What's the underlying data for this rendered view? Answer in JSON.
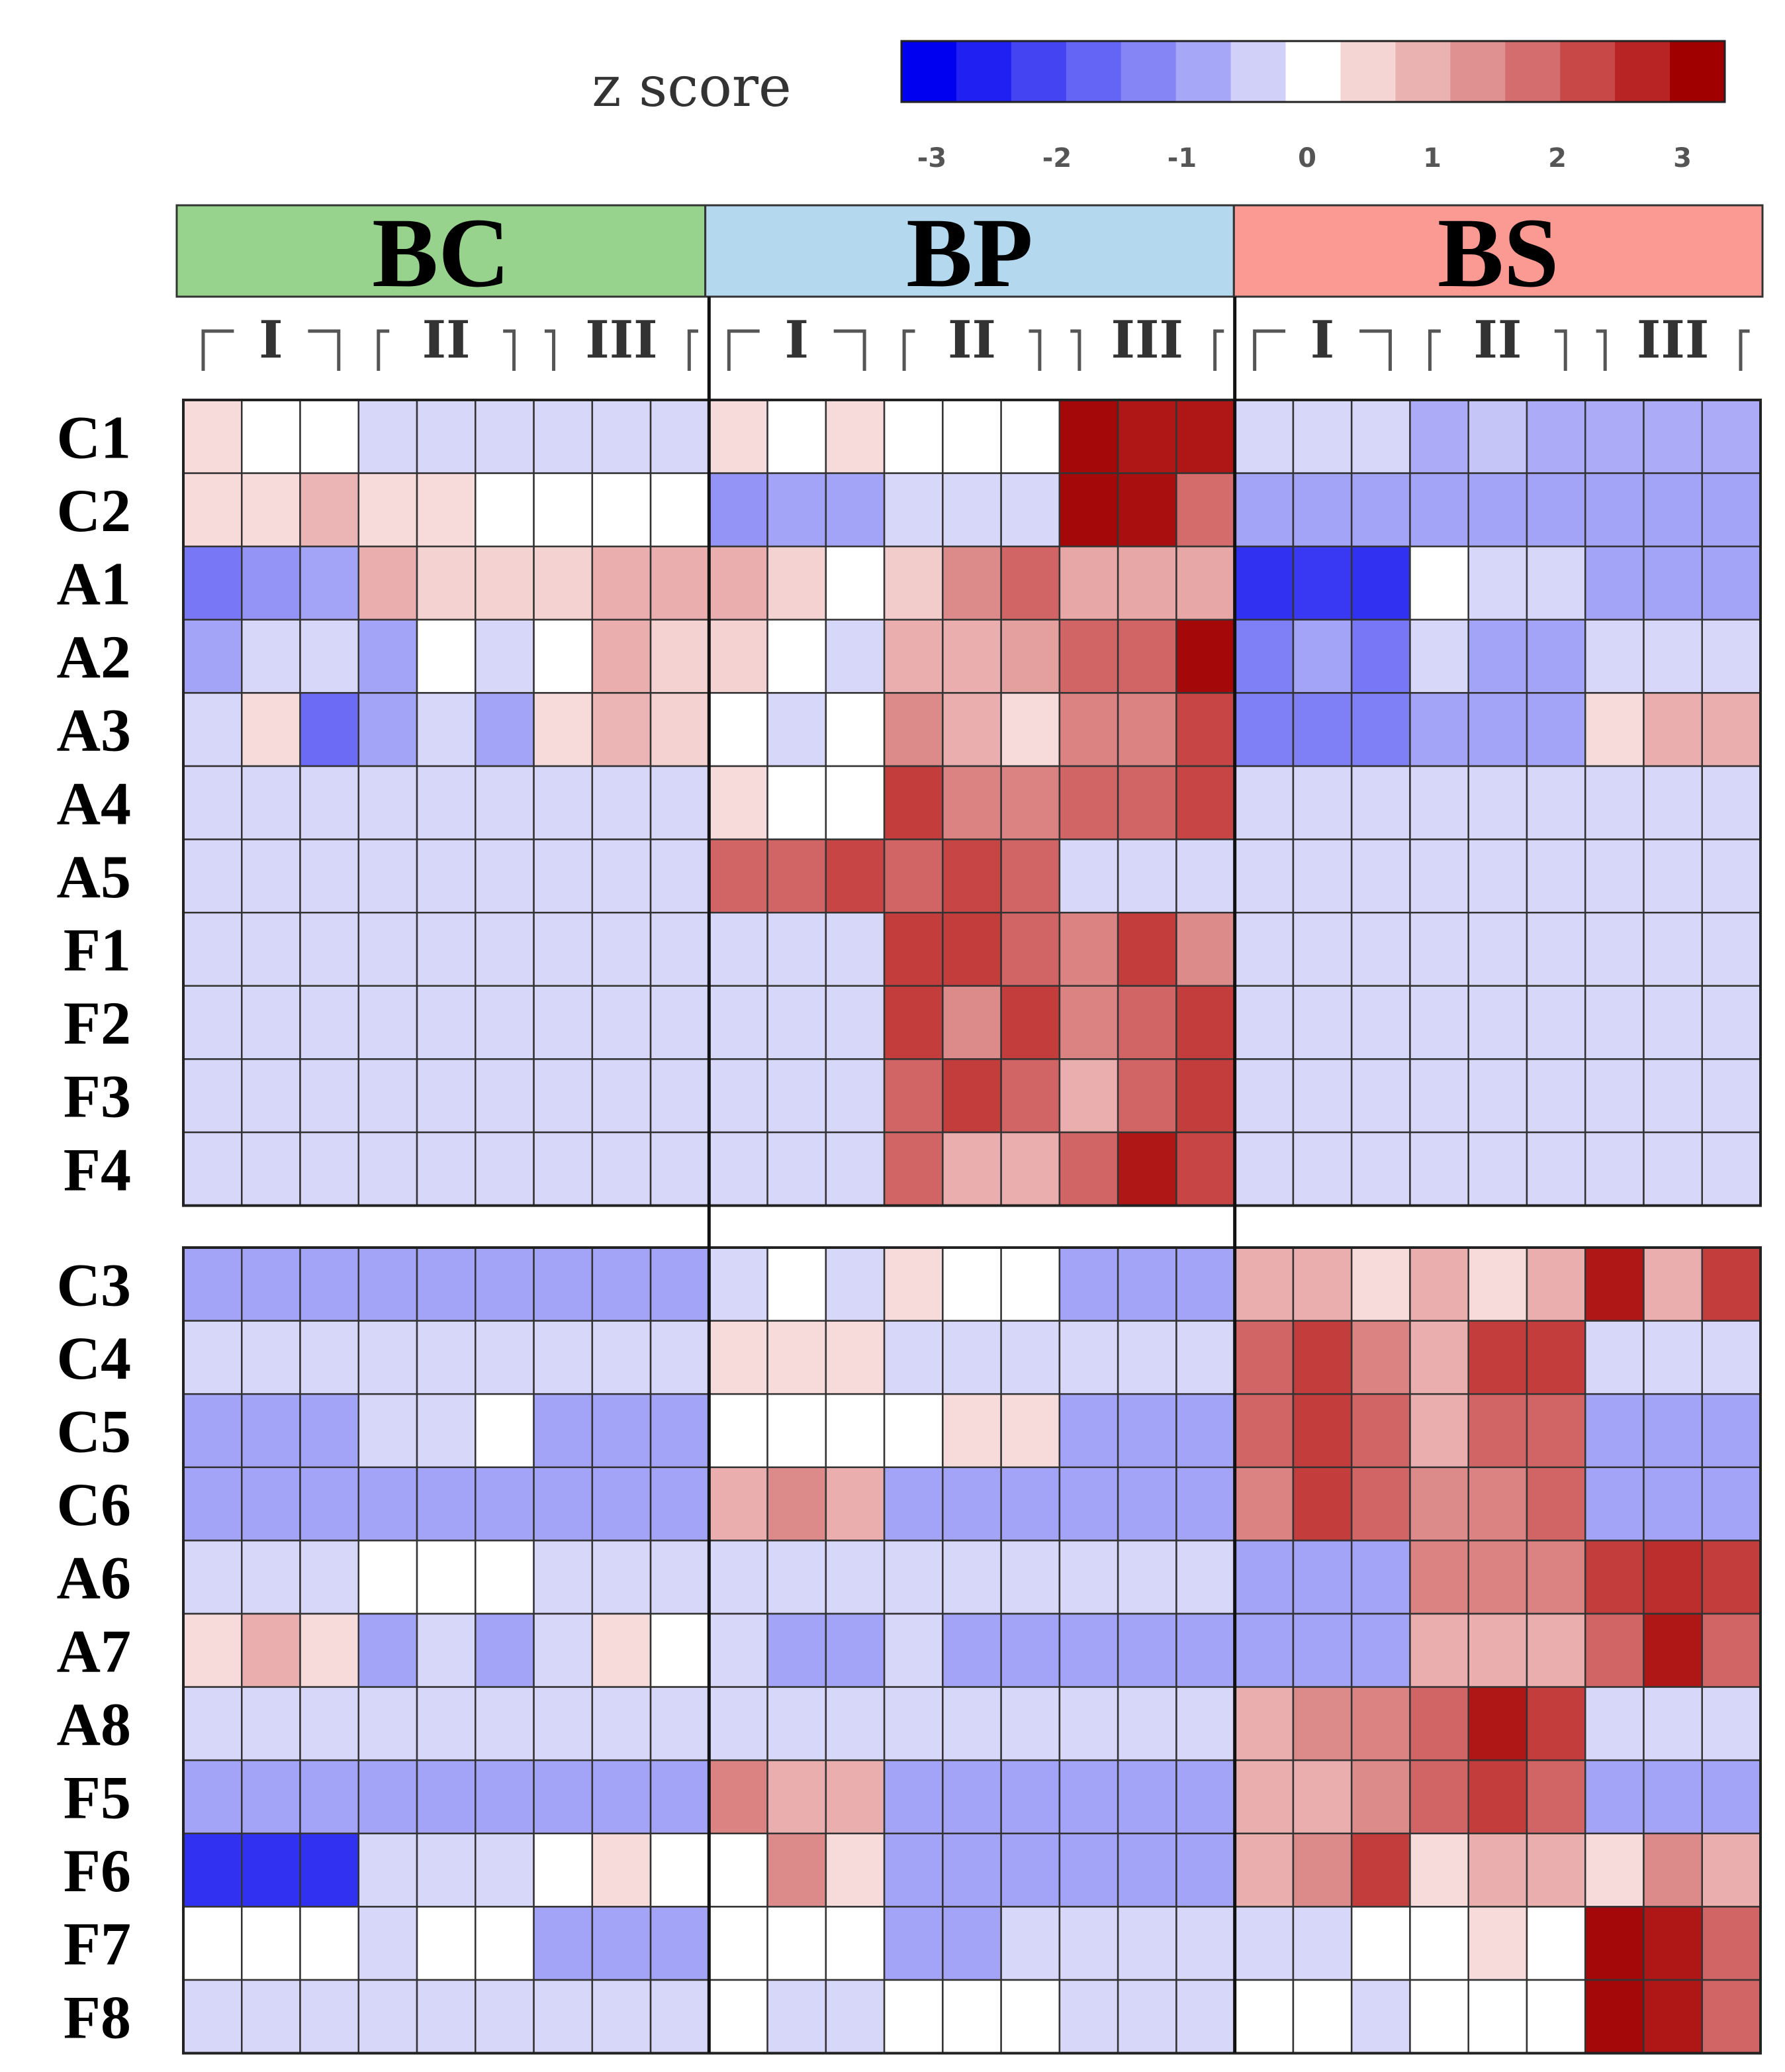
{
  "chart_data": {
    "type": "heatmap",
    "colorbar": {
      "title": "z score",
      "ticks": [
        "-3",
        "-2",
        "-1",
        "0",
        "1",
        "2",
        "3"
      ],
      "range": [
        -3.3,
        3.3
      ],
      "colors": [
        "#0000f0",
        "#2020f2",
        "#4444f3",
        "#6565f5",
        "#8585f6",
        "#a7a7f7",
        "#d0d0f9",
        "#ffffff",
        "#f5d4d4",
        "#ebb2b2",
        "#df9090",
        "#d46d6d",
        "#c84848",
        "#b82424",
        "#a00000"
      ]
    },
    "groups": [
      {
        "label": "BC",
        "color": "#98d38e"
      },
      {
        "label": "BP",
        "color": "#b4d9ef"
      },
      {
        "label": "BS",
        "color": "#fa9a92"
      }
    ],
    "replicates": [
      "I",
      "II",
      "III"
    ],
    "columns_per_group": 9,
    "panels": [
      {
        "rows": [
          "C1",
          "C2",
          "A1",
          "A2",
          "A3",
          "A4",
          "A5",
          "F1",
          "F2",
          "F3",
          "F4"
        ],
        "values": [
          [
            0.4,
            0,
            0,
            -0.4,
            -0.4,
            -0.4,
            -0.4,
            -0.4,
            -0.4,
            0.4,
            0,
            0.4,
            0,
            0,
            0,
            3.2,
            3.0,
            3.0,
            -0.4,
            -0.4,
            -0.4,
            -0.9,
            -0.6,
            -0.9,
            -0.9,
            -0.9,
            -0.9
          ],
          [
            0.4,
            0.4,
            0.9,
            0.4,
            0.4,
            0,
            0,
            0,
            0,
            -1.2,
            -1.0,
            -1.0,
            -0.4,
            -0.4,
            -0.4,
            3.2,
            3.1,
            1.9,
            -1.0,
            -1.0,
            -1.0,
            -1.0,
            -1.0,
            -1.0,
            -1.0,
            -1.0,
            -1.0
          ],
          [
            -1.6,
            -1.2,
            -1.0,
            1.0,
            0.5,
            0.5,
            0.5,
            1.0,
            1.0,
            1.0,
            0.5,
            0,
            0.6,
            1.5,
            2.0,
            1.1,
            1.1,
            1.1,
            -2.6,
            -2.5,
            -2.6,
            0,
            -0.4,
            -0.4,
            -1.0,
            -1.0,
            -1.0
          ],
          [
            -1.0,
            -0.4,
            -0.4,
            -1.0,
            0,
            -0.4,
            0,
            1.0,
            0.5,
            0.5,
            0,
            -0.4,
            1.0,
            1.0,
            1.2,
            2.0,
            2.0,
            3.2,
            -1.5,
            -1.0,
            -1.6,
            -0.4,
            -1.0,
            -1.0,
            -0.4,
            -0.4,
            -0.4
          ],
          [
            -0.4,
            0.4,
            -1.8,
            -1.0,
            -0.4,
            -1.0,
            0.4,
            0.9,
            0.5,
            0,
            -0.4,
            0,
            1.5,
            1.0,
            0.4,
            1.6,
            1.6,
            2.4,
            -1.5,
            -1.5,
            -1.5,
            -1.0,
            -1.0,
            -1.0,
            0.4,
            1.0,
            1.0
          ],
          [
            -0.4,
            -0.4,
            -0.4,
            -0.4,
            -0.4,
            -0.4,
            -0.4,
            -0.4,
            -0.4,
            0.4,
            0,
            0,
            2.5,
            1.6,
            1.6,
            2.0,
            2.0,
            2.4,
            -0.4,
            -0.4,
            -0.4,
            -0.4,
            -0.4,
            -0.4,
            -0.4,
            -0.4,
            -0.4
          ],
          [
            -0.4,
            -0.4,
            -0.4,
            -0.4,
            -0.4,
            -0.4,
            -0.4,
            -0.4,
            -0.4,
            2.0,
            2.0,
            2.4,
            2.0,
            2.4,
            2.0,
            -0.4,
            -0.4,
            -0.4,
            -0.4,
            -0.4,
            -0.4,
            -0.4,
            -0.4,
            -0.4,
            -0.4,
            -0.4,
            -0.4
          ],
          [
            -0.4,
            -0.4,
            -0.4,
            -0.4,
            -0.4,
            -0.4,
            -0.4,
            -0.4,
            -0.4,
            -0.4,
            -0.4,
            -0.4,
            2.5,
            2.5,
            2.0,
            1.6,
            2.5,
            1.5,
            -0.4,
            -0.4,
            -0.4,
            -0.4,
            -0.4,
            -0.4,
            -0.4,
            -0.4,
            -0.4
          ],
          [
            -0.4,
            -0.4,
            -0.4,
            -0.4,
            -0.4,
            -0.4,
            -0.4,
            -0.4,
            -0.4,
            -0.4,
            -0.4,
            -0.4,
            2.5,
            1.5,
            2.5,
            1.6,
            2.0,
            2.5,
            -0.4,
            -0.4,
            -0.4,
            -0.4,
            -0.4,
            -0.4,
            -0.4,
            -0.4,
            -0.4
          ],
          [
            -0.4,
            -0.4,
            -0.4,
            -0.4,
            -0.4,
            -0.4,
            -0.4,
            -0.4,
            -0.4,
            -0.4,
            -0.4,
            -0.4,
            2.0,
            2.5,
            2.0,
            1.0,
            2.0,
            2.5,
            -0.4,
            -0.4,
            -0.4,
            -0.4,
            -0.4,
            -0.4,
            -0.4,
            -0.4,
            -0.4
          ],
          [
            -0.4,
            -0.4,
            -0.4,
            -0.4,
            -0.4,
            -0.4,
            -0.4,
            -0.4,
            -0.4,
            -0.4,
            -0.4,
            -0.4,
            2.0,
            1.0,
            1.0,
            2.0,
            3.0,
            2.4,
            -0.4,
            -0.4,
            -0.4,
            -0.4,
            -0.4,
            -0.4,
            -0.4,
            -0.4,
            -0.4
          ]
        ]
      },
      {
        "rows": [
          "C3",
          "C4",
          "C5",
          "C6",
          "A6",
          "A7",
          "A8",
          "F5",
          "F6",
          "F7",
          "F8"
        ],
        "values": [
          [
            -1.0,
            -1.0,
            -1.0,
            -1.0,
            -1.0,
            -1.0,
            -1.0,
            -1.0,
            -1.0,
            -0.4,
            0,
            -0.4,
            0.4,
            0,
            0,
            -1.0,
            -1.0,
            -1.0,
            1.0,
            1.0,
            0.4,
            1.0,
            0.4,
            1.0,
            3.0,
            1.0,
            2.5
          ],
          [
            -0.4,
            -0.4,
            -0.4,
            -0.4,
            -0.4,
            -0.4,
            -0.4,
            -0.4,
            -0.4,
            0.4,
            0.4,
            0.4,
            -0.4,
            -0.4,
            -0.4,
            -0.4,
            -0.4,
            -0.4,
            2.0,
            2.5,
            1.6,
            1.0,
            2.5,
            2.5,
            -0.4,
            -0.4,
            -0.4
          ],
          [
            -1.0,
            -1.0,
            -1.0,
            -0.4,
            -0.4,
            0,
            -1.0,
            -1.0,
            -1.0,
            0,
            0,
            0,
            0,
            0.4,
            0.4,
            -1.0,
            -1.0,
            -1.0,
            2.0,
            2.5,
            2.0,
            1.0,
            2.0,
            2.0,
            -1.0,
            -1.0,
            -1.0
          ],
          [
            -1.0,
            -1.0,
            -1.0,
            -1.0,
            -1.0,
            -1.0,
            -1.0,
            -1.0,
            -1.0,
            1.0,
            1.5,
            1.0,
            -1.0,
            -1.0,
            -1.0,
            -1.0,
            -1.0,
            -1.0,
            1.6,
            2.5,
            2.0,
            1.5,
            1.6,
            2.0,
            -1.0,
            -1.0,
            -1.0
          ],
          [
            -0.4,
            -0.4,
            -0.4,
            0,
            0,
            0,
            -0.4,
            -0.4,
            -0.4,
            -0.4,
            -0.4,
            -0.4,
            -0.4,
            -0.4,
            -0.4,
            -0.4,
            -0.4,
            -0.4,
            -1.0,
            -1.0,
            -1.0,
            1.6,
            1.6,
            1.6,
            2.5,
            2.7,
            2.5
          ],
          [
            0.4,
            1.0,
            0.4,
            -1.0,
            -0.4,
            -1.0,
            -0.4,
            0.4,
            0,
            -0.4,
            -1.0,
            -1.0,
            -0.4,
            -1.0,
            -1.0,
            -1.0,
            -1.0,
            -1.0,
            -1.0,
            -1.0,
            -1.0,
            1.0,
            1.0,
            1.0,
            2.0,
            3.0,
            2.0
          ],
          [
            -0.4,
            -0.4,
            -0.4,
            -0.4,
            -0.4,
            -0.4,
            -0.4,
            -0.4,
            -0.4,
            -0.4,
            -0.4,
            -0.4,
            -0.4,
            -0.4,
            -0.4,
            -0.4,
            -0.4,
            -0.4,
            1.0,
            1.5,
            1.6,
            2.0,
            3.0,
            2.5,
            -0.4,
            -0.4,
            -0.4
          ],
          [
            -1.0,
            -1.0,
            -1.0,
            -1.0,
            -1.0,
            -1.0,
            -1.0,
            -1.0,
            -1.0,
            1.6,
            1.0,
            1.0,
            -1.0,
            -1.0,
            -1.0,
            -1.0,
            -1.0,
            -1.0,
            1.0,
            1.0,
            1.5,
            2.0,
            2.5,
            2.0,
            -1.0,
            -1.0,
            -1.0
          ],
          [
            -2.6,
            -2.6,
            -2.6,
            -0.4,
            -0.4,
            -0.4,
            0,
            0.4,
            0,
            0,
            1.5,
            0.4,
            -1.0,
            -1.0,
            -1.0,
            -1.0,
            -1.0,
            -1.0,
            1.0,
            1.5,
            2.5,
            0.4,
            1.0,
            1.0,
            0.4,
            1.5,
            1.0
          ],
          [
            0,
            0,
            0,
            -0.4,
            0,
            0,
            -1.0,
            -1.0,
            -1.0,
            0,
            0,
            0,
            -1.0,
            -1.0,
            -0.4,
            -0.4,
            -0.4,
            -0.4,
            -0.4,
            -0.4,
            0,
            0,
            0.4,
            0,
            3.2,
            3.0,
            2.0
          ],
          [
            -0.4,
            -0.4,
            -0.4,
            -0.4,
            -0.4,
            -0.4,
            -0.4,
            -0.4,
            -0.4,
            0,
            -0.4,
            -0.4,
            0,
            0,
            0,
            -0.4,
            -0.4,
            -0.4,
            0,
            0,
            -0.4,
            0,
            0,
            0,
            3.2,
            3.0,
            2.0
          ]
        ]
      }
    ]
  }
}
